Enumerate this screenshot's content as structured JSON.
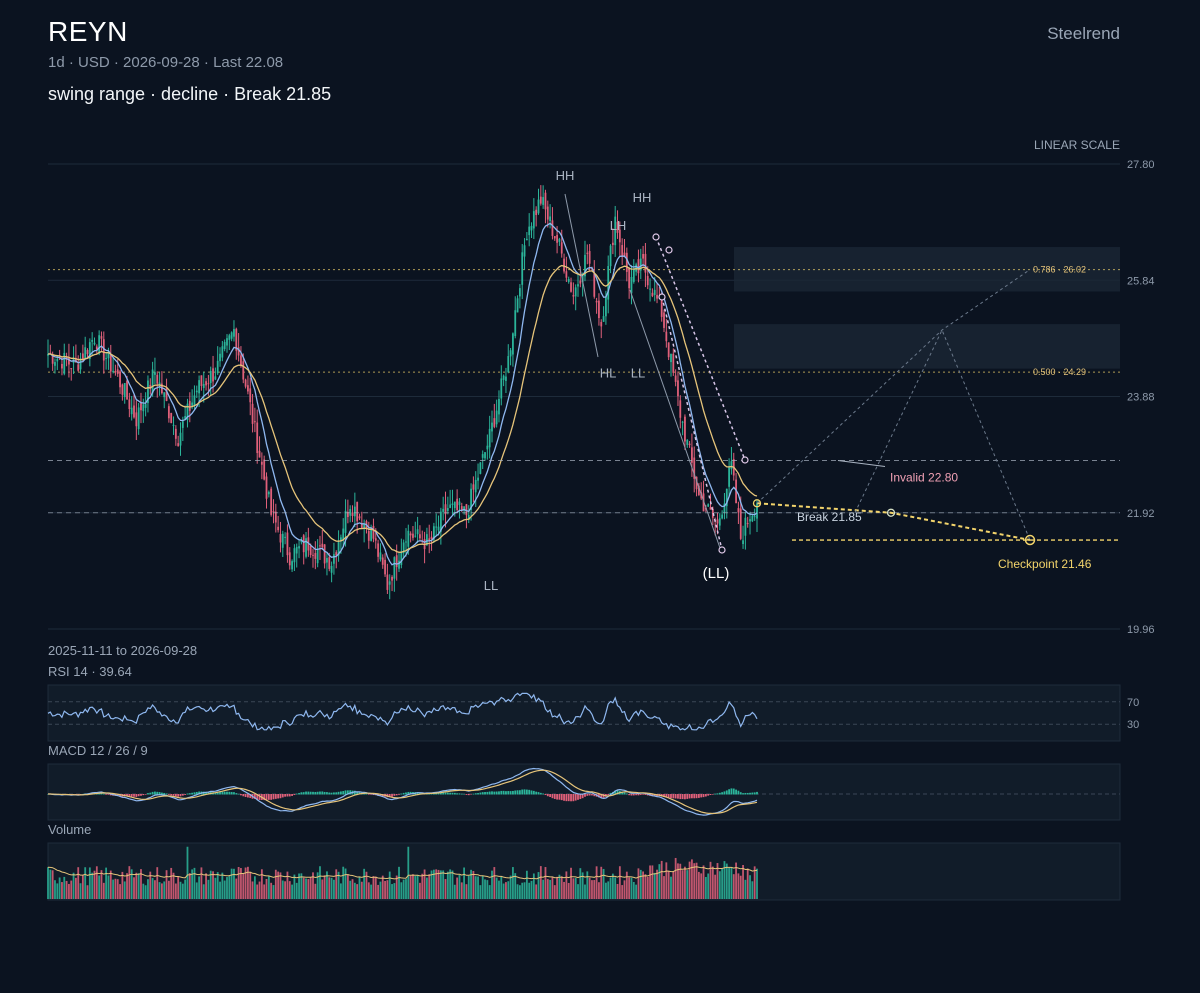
{
  "header": {
    "ticker": "REYN",
    "meta": "1d · USD · 2026-09-28 · Last 22.08",
    "subtitle": "swing range · decline · Break 21.85",
    "brand": "Steelrend",
    "scale_label": "LINEAR SCALE",
    "date_range": "2025-11-11 to 2026-09-28"
  },
  "colors": {
    "background": "#0b1320",
    "up": "#2bb59a",
    "down": "#e0607a",
    "ma_fast": "#8fb8f0",
    "ma_slow": "#e6c47a",
    "accent": "#f3d46b",
    "invalid": "#f0a0b4"
  },
  "chart_data": [
    {
      "type": "candlestick",
      "title": "REYN",
      "ylim": [
        19.96,
        27.8
      ],
      "y_ticks": [
        "27.80",
        "25.84",
        "23.88",
        "21.92",
        "19.96"
      ],
      "x_range": [
        "2025-11-11",
        "2026-09-28"
      ],
      "last": 22.08,
      "swing_labels": [
        {
          "text": "HH",
          "value": 27.2
        },
        {
          "text": "LH",
          "value": 26.3
        },
        {
          "text": "HH",
          "value": 26.9
        },
        {
          "text": "HL",
          "value": 24.2
        },
        {
          "text": "LL",
          "value": 24.2
        },
        {
          "text": "LL",
          "value": 20.6
        },
        {
          "text": "(LL)",
          "value": 21.3
        }
      ],
      "fib_levels": [
        {
          "label": "0.786 · 26.02",
          "value": 26.02
        },
        {
          "label": "0.500 · 24.29",
          "value": 24.29
        }
      ],
      "levels": [
        {
          "label": "Invalid 22.80",
          "value": 22.8
        },
        {
          "label": "Break 21.85",
          "value": 21.85
        },
        {
          "label": "Checkpoint 21.46",
          "value": 21.46
        }
      ]
    },
    {
      "type": "line",
      "title": "RSI 14 · 39.64",
      "last": 39.64,
      "ylim": [
        0,
        100
      ],
      "y_ticks": [
        "70",
        "30"
      ]
    },
    {
      "type": "line",
      "title": "MACD 12 / 26 / 9"
    },
    {
      "type": "bar",
      "title": "Volume"
    }
  ]
}
